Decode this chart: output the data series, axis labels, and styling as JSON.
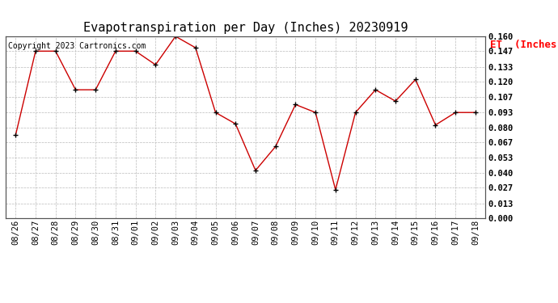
{
  "title": "Evapotranspiration per Day (Inches) 20230919",
  "copyright": "Copyright 2023 Cartronics.com",
  "legend_label": "ET  (Inches)",
  "dates": [
    "08/26",
    "08/27",
    "08/28",
    "08/29",
    "08/30",
    "08/31",
    "09/01",
    "09/02",
    "09/03",
    "09/04",
    "09/05",
    "09/06",
    "09/07",
    "09/08",
    "09/09",
    "09/10",
    "09/11",
    "09/12",
    "09/13",
    "09/14",
    "09/15",
    "09/16",
    "09/17",
    "09/18"
  ],
  "values": [
    0.073,
    0.147,
    0.147,
    0.113,
    0.113,
    0.147,
    0.147,
    0.135,
    0.16,
    0.15,
    0.093,
    0.083,
    0.042,
    0.063,
    0.1,
    0.093,
    0.025,
    0.093,
    0.113,
    0.103,
    0.122,
    0.082,
    0.093,
    0.093
  ],
  "ylim": [
    0.0,
    0.16
  ],
  "yticks": [
    0.0,
    0.013,
    0.027,
    0.04,
    0.053,
    0.067,
    0.08,
    0.093,
    0.107,
    0.12,
    0.133,
    0.147,
    0.16
  ],
  "line_color": "#cc0000",
  "marker_color": "#000000",
  "background_color": "#ffffff",
  "grid_color": "#bbbbbb",
  "title_fontsize": 11,
  "copyright_fontsize": 7,
  "legend_fontsize": 9,
  "tick_fontsize": 7.5
}
